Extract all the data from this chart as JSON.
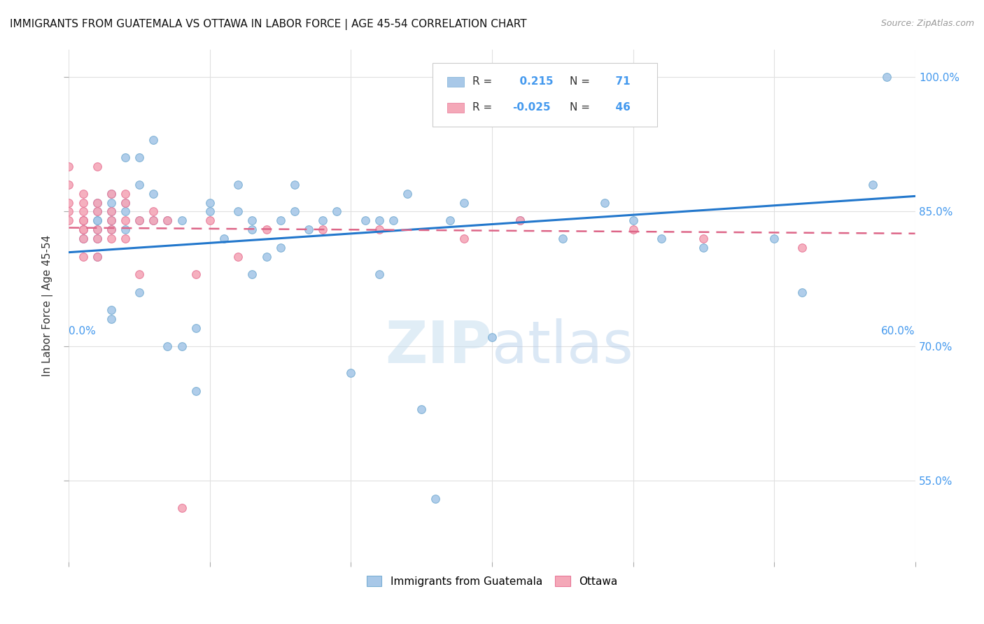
{
  "title": "IMMIGRANTS FROM GUATEMALA VS OTTAWA IN LABOR FORCE | AGE 45-54 CORRELATION CHART",
  "source": "Source: ZipAtlas.com",
  "ylabel": "In Labor Force | Age 45-54",
  "xlim": [
    0.0,
    0.6
  ],
  "ylim": [
    0.46,
    1.03
  ],
  "blue_R": 0.215,
  "blue_N": 71,
  "pink_R": -0.025,
  "pink_N": 46,
  "blue_color": "#A8C8E8",
  "pink_color": "#F4A8B8",
  "blue_edge_color": "#7AAFD4",
  "pink_edge_color": "#E87898",
  "blue_line_color": "#2277CC",
  "pink_line_color": "#DD6688",
  "legend_label_blue": "Immigrants from Guatemala",
  "legend_label_pink": "Ottawa",
  "right_ytick_vals": [
    0.55,
    0.7,
    0.85,
    1.0
  ],
  "right_ytick_labels": [
    "55.0%",
    "70.0%",
    "85.0%",
    "100.0%"
  ],
  "blue_points_x": [
    0.01,
    0.01,
    0.01,
    0.02,
    0.02,
    0.02,
    0.02,
    0.02,
    0.02,
    0.02,
    0.03,
    0.03,
    0.03,
    0.03,
    0.03,
    0.03,
    0.03,
    0.04,
    0.04,
    0.04,
    0.04,
    0.05,
    0.05,
    0.05,
    0.05,
    0.06,
    0.06,
    0.06,
    0.07,
    0.07,
    0.08,
    0.08,
    0.09,
    0.09,
    0.1,
    0.1,
    0.11,
    0.12,
    0.12,
    0.13,
    0.13,
    0.13,
    0.14,
    0.15,
    0.15,
    0.16,
    0.16,
    0.17,
    0.18,
    0.19,
    0.2,
    0.21,
    0.22,
    0.22,
    0.23,
    0.24,
    0.25,
    0.26,
    0.27,
    0.28,
    0.3,
    0.32,
    0.35,
    0.38,
    0.4,
    0.42,
    0.45,
    0.5,
    0.52,
    0.57,
    0.58
  ],
  "blue_points_y": [
    0.84,
    0.83,
    0.82,
    0.84,
    0.85,
    0.84,
    0.83,
    0.82,
    0.86,
    0.8,
    0.87,
    0.86,
    0.84,
    0.83,
    0.85,
    0.74,
    0.73,
    0.86,
    0.85,
    0.83,
    0.91,
    0.91,
    0.88,
    0.84,
    0.76,
    0.93,
    0.87,
    0.84,
    0.84,
    0.7,
    0.7,
    0.84,
    0.72,
    0.65,
    0.86,
    0.85,
    0.82,
    0.88,
    0.85,
    0.84,
    0.83,
    0.78,
    0.8,
    0.84,
    0.81,
    0.88,
    0.85,
    0.83,
    0.84,
    0.85,
    0.67,
    0.84,
    0.84,
    0.78,
    0.84,
    0.87,
    0.63,
    0.53,
    0.84,
    0.86,
    0.71,
    0.84,
    0.82,
    0.86,
    0.84,
    0.82,
    0.81,
    0.82,
    0.76,
    0.88,
    1.0
  ],
  "pink_points_x": [
    0.0,
    0.0,
    0.0,
    0.0,
    0.0,
    0.01,
    0.01,
    0.01,
    0.01,
    0.01,
    0.01,
    0.01,
    0.01,
    0.01,
    0.02,
    0.02,
    0.02,
    0.02,
    0.02,
    0.02,
    0.03,
    0.03,
    0.03,
    0.03,
    0.03,
    0.04,
    0.04,
    0.04,
    0.04,
    0.05,
    0.05,
    0.06,
    0.06,
    0.07,
    0.08,
    0.09,
    0.1,
    0.12,
    0.14,
    0.18,
    0.22,
    0.28,
    0.32,
    0.4,
    0.45,
    0.52
  ],
  "pink_points_y": [
    0.84,
    0.85,
    0.86,
    0.88,
    0.9,
    0.83,
    0.85,
    0.86,
    0.87,
    0.84,
    0.83,
    0.82,
    0.8,
    0.84,
    0.86,
    0.85,
    0.83,
    0.82,
    0.8,
    0.9,
    0.87,
    0.85,
    0.84,
    0.82,
    0.83,
    0.86,
    0.87,
    0.84,
    0.82,
    0.84,
    0.78,
    0.85,
    0.84,
    0.84,
    0.52,
    0.78,
    0.84,
    0.8,
    0.83,
    0.83,
    0.83,
    0.82,
    0.84,
    0.83,
    0.82,
    0.81
  ],
  "background_color": "#FFFFFF",
  "grid_color": "#E0E0E0",
  "accent_color": "#4499EE"
}
